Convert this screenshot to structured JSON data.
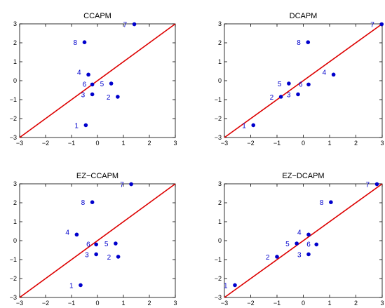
{
  "chart_data": [
    {
      "type": "scatter",
      "title": "CCAPM",
      "xlim": [
        -3,
        3
      ],
      "ylim": [
        -3,
        3
      ],
      "xticks": [
        -3,
        -2,
        -1,
        0,
        1,
        2,
        3
      ],
      "yticks": [
        -3,
        -2,
        -1,
        0,
        1,
        2,
        3
      ],
      "reference_line": {
        "x": [
          -3,
          3
        ],
        "y": [
          -3,
          3
        ],
        "color": "#dd0000"
      },
      "point_color": "#0000cc",
      "points": [
        {
          "label": "1",
          "x": -0.45,
          "y": -2.35
        },
        {
          "label": "2",
          "x": 0.78,
          "y": -0.85
        },
        {
          "label": "3",
          "x": -0.2,
          "y": -0.72
        },
        {
          "label": "4",
          "x": -0.35,
          "y": 0.32
        },
        {
          "label": "5",
          "x": 0.53,
          "y": -0.15
        },
        {
          "label": "6",
          "x": -0.2,
          "y": -0.2
        },
        {
          "label": "7",
          "x": 1.42,
          "y": 2.98
        },
        {
          "label": "8",
          "x": -0.5,
          "y": 2.03
        }
      ]
    },
    {
      "type": "scatter",
      "title": "DCAPM",
      "xlim": [
        -3,
        3
      ],
      "ylim": [
        -3,
        3
      ],
      "xticks": [
        -3,
        -2,
        -1,
        0,
        1,
        2,
        3
      ],
      "yticks": [
        -3,
        -2,
        -1,
        0,
        1,
        2,
        3
      ],
      "reference_line": {
        "x": [
          -3,
          3
        ],
        "y": [
          -3,
          3
        ],
        "color": "#dd0000"
      },
      "point_color": "#0000cc",
      "points": [
        {
          "label": "1",
          "x": -1.9,
          "y": -2.35
        },
        {
          "label": "2",
          "x": -0.85,
          "y": -0.85
        },
        {
          "label": "3",
          "x": -0.2,
          "y": -0.72
        },
        {
          "label": "4",
          "x": 1.15,
          "y": 0.32
        },
        {
          "label": "5",
          "x": -0.55,
          "y": -0.15
        },
        {
          "label": "6",
          "x": 0.2,
          "y": -0.2
        },
        {
          "label": "7",
          "x": 2.98,
          "y": 2.98
        },
        {
          "label": "8",
          "x": 0.18,
          "y": 2.03
        }
      ]
    },
    {
      "type": "scatter",
      "title": "EZ−CCAPM",
      "xlim": [
        -3,
        3
      ],
      "ylim": [
        -3,
        3
      ],
      "xticks": [
        -3,
        -2,
        -1,
        0,
        1,
        2,
        3
      ],
      "yticks": [
        -3,
        -2,
        -1,
        0,
        1,
        2,
        3
      ],
      "reference_line": {
        "x": [
          -3,
          3
        ],
        "y": [
          -3,
          3
        ],
        "color": "#dd0000"
      },
      "point_color": "#0000cc",
      "points": [
        {
          "label": "1",
          "x": -0.65,
          "y": -2.35
        },
        {
          "label": "2",
          "x": 0.8,
          "y": -0.85
        },
        {
          "label": "3",
          "x": -0.05,
          "y": -0.72
        },
        {
          "label": "4",
          "x": -0.8,
          "y": 0.32
        },
        {
          "label": "5",
          "x": 0.7,
          "y": -0.15
        },
        {
          "label": "6",
          "x": -0.05,
          "y": -0.2
        },
        {
          "label": "7",
          "x": 1.3,
          "y": 2.98
        },
        {
          "label": "8",
          "x": -0.2,
          "y": 2.03
        }
      ]
    },
    {
      "type": "scatter",
      "title": "EZ−DCAPM",
      "xlim": [
        -3,
        3
      ],
      "ylim": [
        -3,
        3
      ],
      "xticks": [
        -3,
        -2,
        -1,
        0,
        1,
        2,
        3
      ],
      "yticks": [
        -3,
        -2,
        -1,
        0,
        1,
        2,
        3
      ],
      "reference_line": {
        "x": [
          -3,
          3
        ],
        "y": [
          -3,
          3
        ],
        "color": "#dd0000"
      },
      "point_color": "#0000cc",
      "points": [
        {
          "label": "1",
          "x": -2.6,
          "y": -2.35
        },
        {
          "label": "2",
          "x": -1.0,
          "y": -0.85
        },
        {
          "label": "3",
          "x": 0.2,
          "y": -0.72
        },
        {
          "label": "4",
          "x": 0.2,
          "y": 0.32
        },
        {
          "label": "5",
          "x": -0.25,
          "y": -0.15
        },
        {
          "label": "6",
          "x": 0.5,
          "y": -0.2
        },
        {
          "label": "7",
          "x": 2.8,
          "y": 2.98
        },
        {
          "label": "8",
          "x": 1.05,
          "y": 2.03
        }
      ]
    }
  ]
}
